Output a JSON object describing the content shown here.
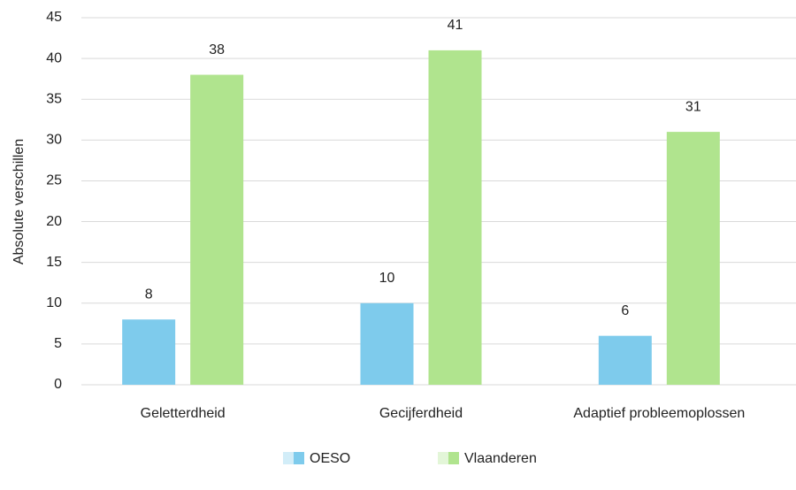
{
  "chart_data": {
    "type": "bar",
    "y_label": "Absolute verschillen",
    "categories": [
      "Geletterdheid",
      "Gecijferdheid",
      "Adaptief probleemoplossen"
    ],
    "series": [
      {
        "name": "OESO",
        "color": "#7ecbec",
        "values": [
          8,
          10,
          6
        ]
      },
      {
        "name": "Vlaanderen",
        "color": "#b0e48e",
        "values": [
          38,
          41,
          31
        ]
      }
    ],
    "ylim": [
      0,
      45
    ],
    "yticks": [
      0,
      5,
      10,
      15,
      20,
      25,
      30,
      35,
      40,
      45
    ],
    "grid": true,
    "legend": "bottom"
  }
}
